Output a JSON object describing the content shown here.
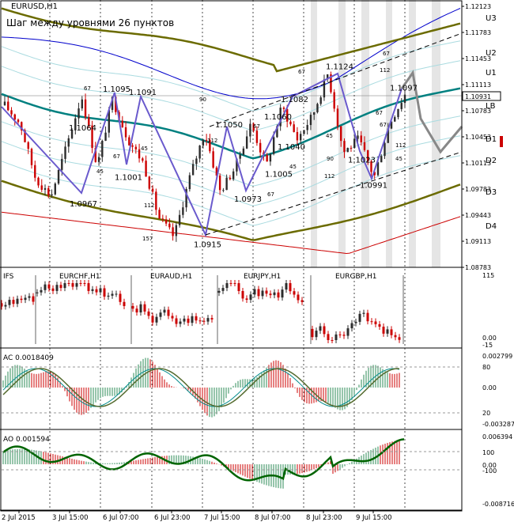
{
  "chart_data": [
    {
      "type": "candlestick",
      "symbol": "EURUSD,H1",
      "note": "Шаг между уровнями 26 пунктов",
      "price_axis": [
        "1.12123",
        "1.11783",
        "1.11453",
        "1.11113",
        "1.10783",
        "1.10453",
        "1.10113",
        "1.09783",
        "1.09443",
        "1.09113",
        "1.08783"
      ],
      "current_price": "1.10931",
      "levels": [
        {
          "name": "U3",
          "price": 1.1202
        },
        {
          "name": "U2",
          "price": 1.1151
        },
        {
          "name": "U1",
          "price": 1.1117
        },
        {
          "name": "LB",
          "price": 1.1083
        },
        {
          "name": "D1",
          "price": 1.1047
        },
        {
          "name": "D2",
          "price": 1.1011
        },
        {
          "name": "D3",
          "price": 1.0977
        },
        {
          "name": "D4",
          "price": 1.0933
        }
      ],
      "swing_points": [
        {
          "label": "1.1095",
          "price": 1.1095
        },
        {
          "label": "1.1091",
          "price": 1.1091
        },
        {
          "label": "1.1064",
          "price": 1.1064
        },
        {
          "label": "1.1001",
          "price": 1.1001
        },
        {
          "label": "1.0967",
          "price": 1.0967
        },
        {
          "label": "1.0915",
          "price": 1.0915
        },
        {
          "label": "1.1050",
          "price": 1.105
        },
        {
          "label": "1.0973",
          "price": 1.0973
        },
        {
          "label": "1.1060",
          "price": 1.106
        },
        {
          "label": "1.1005",
          "price": 1.1005
        },
        {
          "label": "1.1040",
          "price": 1.104
        },
        {
          "label": "1.1082",
          "price": 1.1082
        },
        {
          "label": "1.1124",
          "price": 1.1124
        },
        {
          "label": "1.1023",
          "price": 1.1023
        },
        {
          "label": "1.0991",
          "price": 1.0991
        },
        {
          "label": "1.1097",
          "price": 1.1097
        }
      ],
      "bar_counts": [
        "67",
        "45",
        "67",
        "45",
        "112",
        "67",
        "45",
        "112",
        "157",
        "67",
        "112",
        "67",
        "45",
        "67",
        "90",
        "112",
        "67",
        "90",
        "112",
        "45",
        "67"
      ]
    },
    {
      "type": "bar",
      "title": "IFS",
      "pairs": [
        "EURCHF,H1",
        "EURAUD,H1",
        "EURJPY,H1",
        "EURGBP,H1"
      ],
      "axis": [
        "115",
        "0.00",
        "-15"
      ]
    },
    {
      "type": "histogram",
      "title": "AC 0.0018409",
      "axis": [
        "0.002799",
        "80",
        "0.00",
        "20",
        "-0.003287"
      ]
    },
    {
      "type": "histogram",
      "title": "AO 0.001594",
      "axis": [
        "0.006394",
        "100",
        "0.00",
        "-100",
        "-0.008716"
      ]
    }
  ],
  "time_axis": [
    "2 Jul 2015",
    "3 Jul 15:00",
    "6 Jul 07:00",
    "6 Jul 23:00",
    "7 Jul 15:00",
    "8 Jul 07:00",
    "8 Jul 23:00",
    "9 Jul 15:00"
  ],
  "colors": {
    "up": "#2c2c2c",
    "down": "#cc0000",
    "envelope_olive": "#6b6b00",
    "lb_teal": "#008080",
    "blue": "#0000cc",
    "zigzag": "#6a5acd",
    "shade": "#dcdcdc"
  }
}
